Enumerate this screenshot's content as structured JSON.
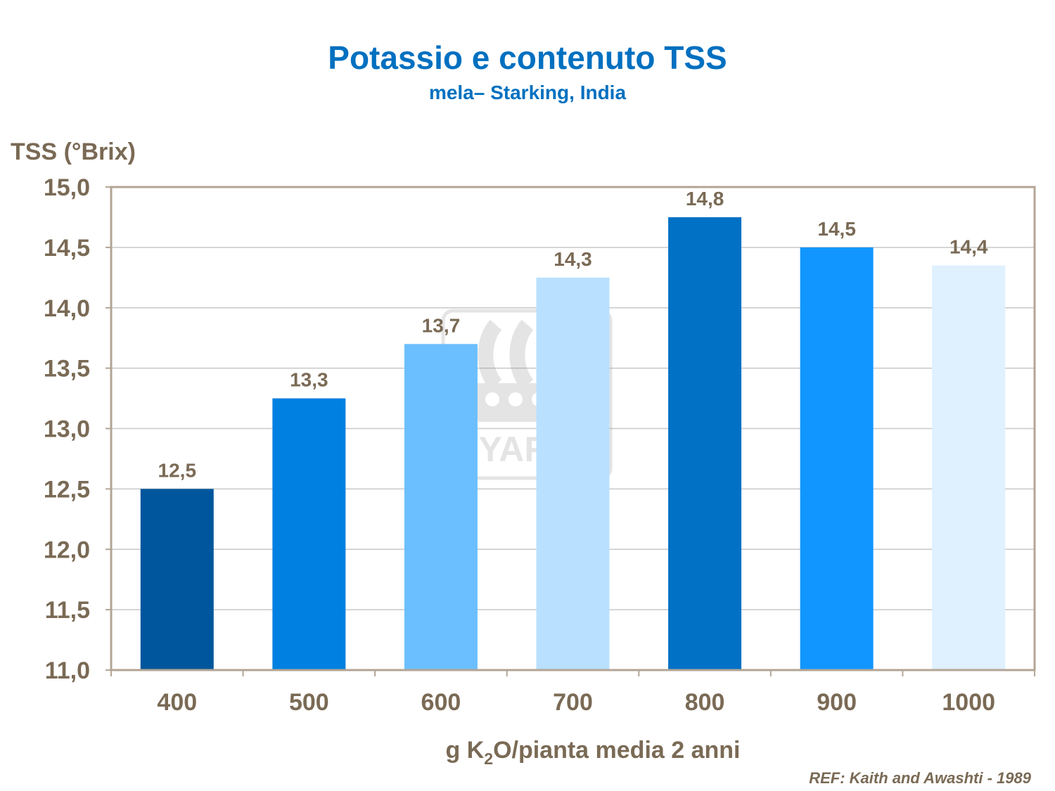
{
  "chart_data": {
    "type": "bar",
    "title": "Potassio e contenuto TSS",
    "subtitle": "mela– Starking, India",
    "ylabel": "TSS (°Brix)",
    "xlabel_parts": {
      "pre": "g K",
      "sub": "2",
      "post": "O/pianta media 2 anni"
    },
    "categories": [
      "400",
      "500",
      "600",
      "700",
      "800",
      "900",
      "1000"
    ],
    "values": [
      12.5,
      13.25,
      13.7,
      14.25,
      14.75,
      14.5,
      14.35
    ],
    "data_labels": [
      "12,5",
      "13,3",
      "13,7",
      "14,3",
      "14,8",
      "14,5",
      "14,4"
    ],
    "ylim": [
      11.0,
      15.0
    ],
    "yticks": [
      11.0,
      11.5,
      12.0,
      12.5,
      13.0,
      13.5,
      14.0,
      14.5,
      15.0
    ],
    "ytick_labels": [
      "11,0",
      "11,5",
      "12,0",
      "12,5",
      "13,0",
      "13,5",
      "14,0",
      "14,5",
      "15,0"
    ],
    "grid": true,
    "bar_colors": [
      "#00569c",
      "#0080e0",
      "#6bbfff",
      "#b9e0ff",
      "#0071c5",
      "#1196ff",
      "#dff0ff"
    ],
    "reference": "REF:  Kaith  and Awashti  -  1989",
    "watermark": "YARA"
  },
  "colors": {
    "title": "#0070c0",
    "axis_text": "#7a6a55",
    "frame": "#b3a595",
    "grid": "#c8c8c8"
  }
}
